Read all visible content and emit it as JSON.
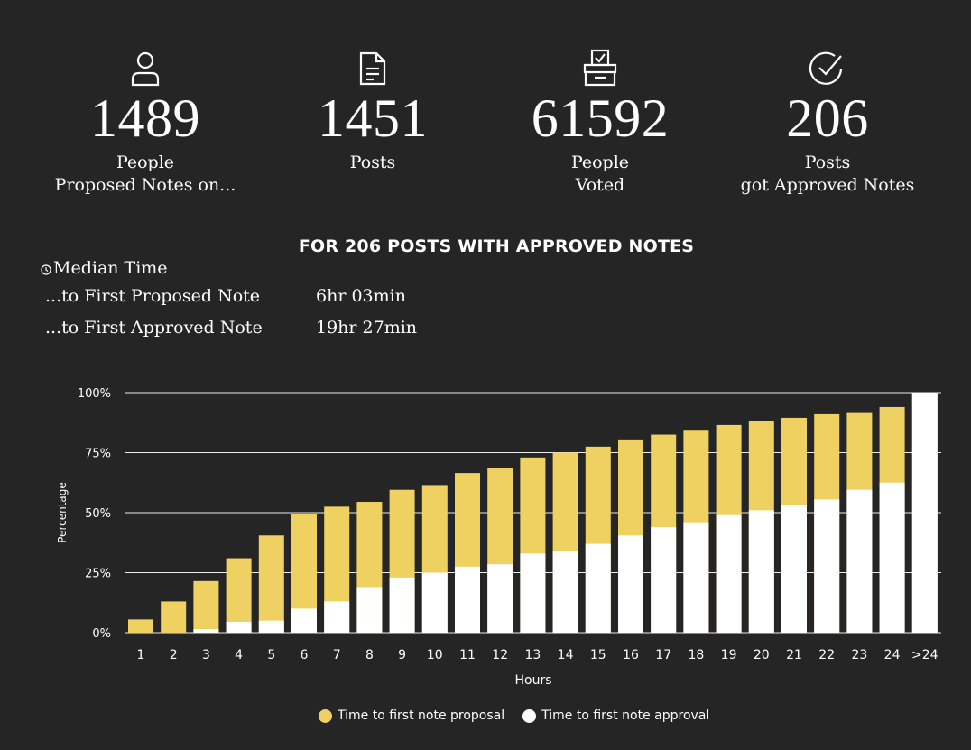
{
  "stats": [
    {
      "icon": "person-icon",
      "value": "1489",
      "label": [
        "People",
        "Proposed Notes on..."
      ]
    },
    {
      "icon": "document-icon",
      "value": "1451",
      "label": [
        "Posts"
      ]
    },
    {
      "icon": "ballot-box-icon",
      "value": "61592",
      "label": [
        "People",
        "Voted"
      ]
    },
    {
      "icon": "check-circle-icon",
      "value": "206",
      "label": [
        "Posts",
        "got Approved Notes"
      ]
    }
  ],
  "section_title": "FOR 206 POSTS WITH APPROVED NOTES",
  "median": {
    "heading": "Median Time",
    "rows": [
      {
        "label": "...to First Proposed Note",
        "value": "6hr 03min"
      },
      {
        "label": "...to First Approved Note",
        "value": "19hr 27min"
      }
    ]
  },
  "colors": {
    "background": "#252525",
    "proposal": "#efd162",
    "approval": "#ffffff",
    "text": "#ffffff"
  },
  "chart_data": {
    "type": "bar",
    "title": "",
    "xlabel": "Hours",
    "ylabel": "Percentage",
    "ylim": [
      0,
      100
    ],
    "yticks": [
      "0%",
      "25%",
      "50%",
      "75%",
      "100%"
    ],
    "ytick_values": [
      0,
      25,
      50,
      75,
      100
    ],
    "categories": [
      "1",
      "2",
      "3",
      "4",
      "5",
      "6",
      "7",
      "8",
      "9",
      "10",
      "11",
      "12",
      "13",
      "14",
      "15",
      "16",
      "17",
      "18",
      "19",
      "20",
      "21",
      "22",
      "23",
      "24",
      ">24"
    ],
    "series": [
      {
        "name": "Time to first note proposal",
        "color": "#efd162",
        "values": [
          5.5,
          13,
          21.5,
          31,
          40.5,
          49.5,
          52.5,
          54.5,
          59.5,
          61.5,
          66.5,
          68.5,
          73,
          75,
          77.5,
          80.5,
          82.5,
          84.5,
          86.5,
          88,
          89.5,
          91,
          91.5,
          94,
          100
        ]
      },
      {
        "name": "Time to first note approval",
        "color": "#ffffff",
        "values": [
          0,
          0,
          1.5,
          4.5,
          5,
          10,
          13,
          19,
          23,
          25,
          27.5,
          28.5,
          33,
          34,
          37,
          40.5,
          44,
          46,
          49,
          51,
          53,
          55.5,
          59.5,
          62.5,
          100
        ]
      }
    ],
    "grid": true,
    "legend": "bottom"
  }
}
